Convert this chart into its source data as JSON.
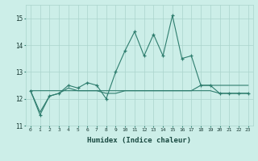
{
  "xlabel": "Humidex (Indice chaleur)",
  "ylabel": "",
  "background_color": "#cceee8",
  "line_color": "#2e7d6e",
  "grid_color": "#aad4cc",
  "x_values": [
    0,
    1,
    2,
    3,
    4,
    5,
    6,
    7,
    8,
    9,
    10,
    11,
    12,
    13,
    14,
    15,
    16,
    17,
    18,
    19,
    20,
    21,
    22,
    23
  ],
  "y_main": [
    12.3,
    11.4,
    12.1,
    12.2,
    12.5,
    12.4,
    12.6,
    12.5,
    12.0,
    13.0,
    13.8,
    14.5,
    13.6,
    14.4,
    13.6,
    15.1,
    13.5,
    13.6,
    12.5,
    12.5,
    12.2,
    12.2,
    12.2,
    12.2
  ],
  "y_min": [
    12.3,
    11.5,
    12.1,
    12.2,
    12.4,
    12.3,
    12.3,
    12.3,
    12.2,
    12.2,
    12.3,
    12.3,
    12.3,
    12.3,
    12.3,
    12.3,
    12.3,
    12.3,
    12.3,
    12.3,
    12.2,
    12.2,
    12.2,
    12.2
  ],
  "y_max": [
    12.3,
    12.3,
    12.3,
    12.3,
    12.3,
    12.3,
    12.3,
    12.3,
    12.3,
    12.3,
    12.3,
    12.3,
    12.3,
    12.3,
    12.3,
    12.3,
    12.3,
    12.3,
    12.5,
    12.5,
    12.5,
    12.5,
    12.5,
    12.5
  ],
  "ylim": [
    11.0,
    15.5
  ],
  "xlim": [
    -0.5,
    23.5
  ],
  "yticks": [
    11,
    12,
    13,
    14,
    15
  ],
  "xticks": [
    0,
    1,
    2,
    3,
    4,
    5,
    6,
    7,
    8,
    9,
    10,
    11,
    12,
    13,
    14,
    15,
    16,
    17,
    18,
    19,
    20,
    21,
    22,
    23
  ]
}
